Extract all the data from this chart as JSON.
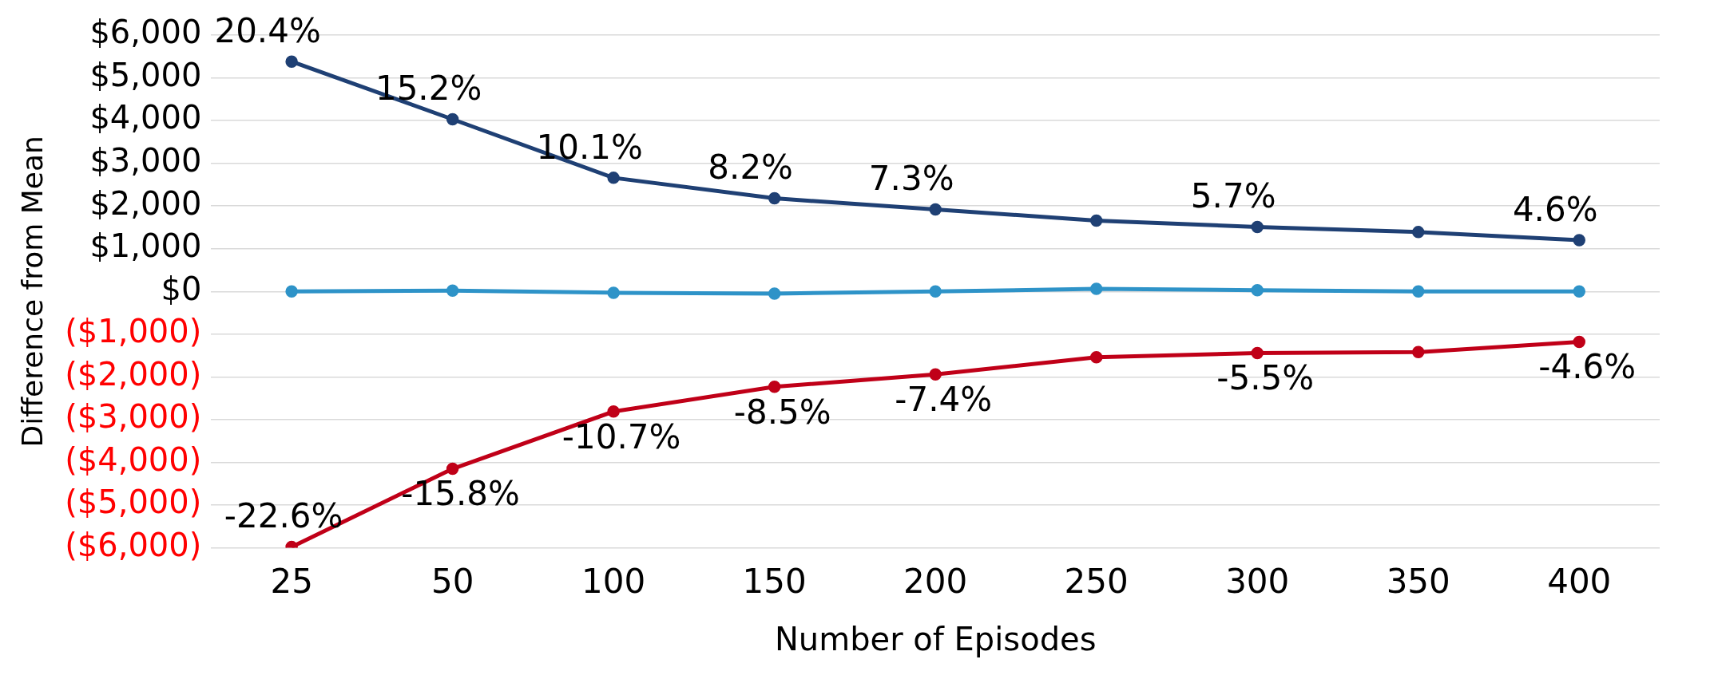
{
  "chart_data": {
    "type": "line",
    "xlabel": "Number of Episodes",
    "ylabel": "Difference from Mean",
    "categories": [
      "25",
      "50",
      "100",
      "150",
      "200",
      "250",
      "300",
      "350",
      "400"
    ],
    "series": [
      {
        "color": "#1f4074",
        "values": [
          5380,
          4030,
          2660,
          2180,
          1920,
          1660,
          1510,
          1390,
          1200
        ]
      },
      {
        "color": "#2e93c8",
        "values": [
          0,
          20,
          -30,
          -50,
          0,
          60,
          30,
          0,
          0
        ]
      },
      {
        "color": "#c00018",
        "values": [
          -5980,
          -4150,
          -2810,
          -2230,
          -1940,
          -1540,
          -1440,
          -1420,
          -1180
        ]
      }
    ],
    "annotations": [
      {
        "text": "20.4%",
        "x": "25",
        "y": 5380
      },
      {
        "text": "15.2%",
        "x": "50",
        "y": 4030
      },
      {
        "text": "10.1%",
        "x": "100",
        "y": 2660
      },
      {
        "text": "8.2%",
        "x": "150",
        "y": 2180
      },
      {
        "text": "7.3%",
        "x": "200",
        "y": 1920
      },
      {
        "text": "5.7%",
        "x": "300",
        "y": 1510
      },
      {
        "text": "4.6%",
        "x": "400",
        "y": 1200
      },
      {
        "text": "-22.6%",
        "x": "25",
        "y": -5980
      },
      {
        "text": "-15.8%",
        "x": "50",
        "y": -4150
      },
      {
        "text": "-10.7%",
        "x": "100",
        "y": -2810
      },
      {
        "text": "-8.5%",
        "x": "150",
        "y": -2230
      },
      {
        "text": "-7.4%",
        "x": "200",
        "y": -1940
      },
      {
        "text": "-5.5%",
        "x": "300",
        "y": -1440
      },
      {
        "text": "-4.6%",
        "x": "400",
        "y": -1180
      }
    ],
    "ylim": [
      -6000,
      6000
    ],
    "yticks": [
      {
        "value": -6000,
        "label": "($6,000)"
      },
      {
        "value": -5000,
        "label": "($5,000)"
      },
      {
        "value": -4000,
        "label": "($4,000)"
      },
      {
        "value": -3000,
        "label": "($3,000)"
      },
      {
        "value": -2000,
        "label": "($2,000)"
      },
      {
        "value": -1000,
        "label": "($1,000)"
      },
      {
        "value": 0,
        "label": "$0"
      },
      {
        "value": 1000,
        "label": "$1,000"
      },
      {
        "value": 2000,
        "label": "$2,000"
      },
      {
        "value": 3000,
        "label": "$3,000"
      },
      {
        "value": 4000,
        "label": "$4,000"
      },
      {
        "value": 5000,
        "label": "$5,000"
      },
      {
        "value": 6000,
        "label": "$6,000"
      }
    ],
    "grid": "y",
    "legend": false,
    "marker": "circle",
    "line_style": "solid"
  }
}
